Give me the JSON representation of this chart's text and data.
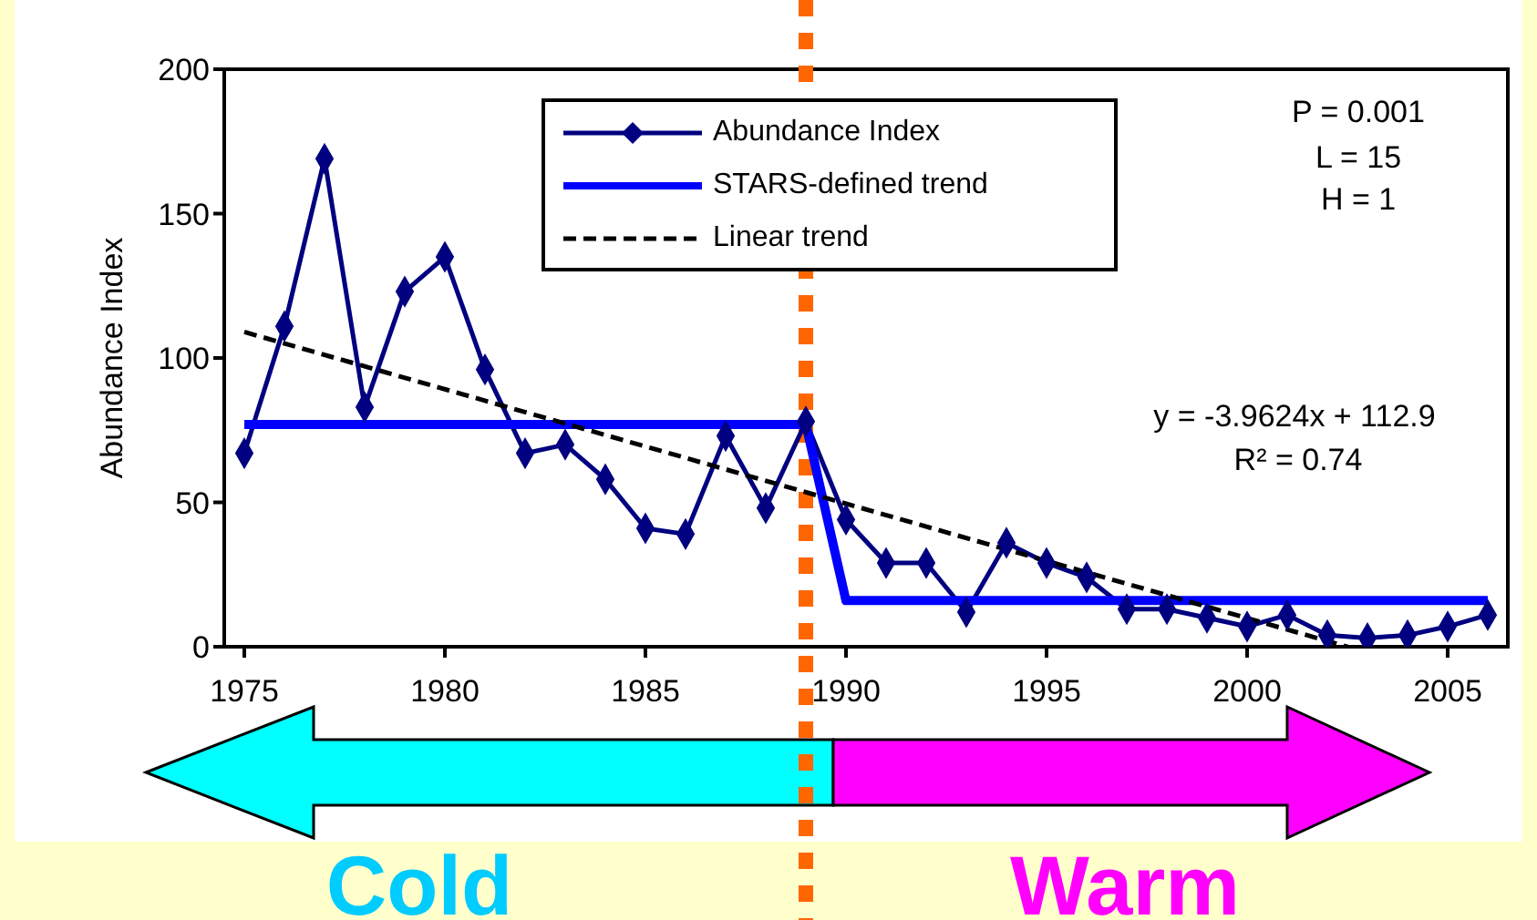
{
  "chart_data": {
    "type": "line",
    "ylabel": "Abundance Index",
    "xlim": [
      1974.5,
      2006.5
    ],
    "xticks": [
      1975,
      1980,
      1985,
      1990,
      1995,
      2000,
      2005
    ],
    "ylim": [
      0,
      200
    ],
    "yticks": [
      0,
      50,
      100,
      150,
      200
    ],
    "x": [
      1975,
      1976,
      1977,
      1978,
      1979,
      1980,
      1981,
      1982,
      1983,
      1984,
      1985,
      1986,
      1987,
      1988,
      1989,
      1990,
      1991,
      1992,
      1993,
      1994,
      1995,
      1996,
      1997,
      1998,
      1999,
      2000,
      2001,
      2002,
      2003,
      2004,
      2005,
      2006
    ],
    "series": [
      {
        "name": "Abundance Index",
        "color": "#000080",
        "marker": "diamond",
        "line_style": "solid",
        "values": [
          67,
          111,
          169,
          83,
          123,
          135,
          96,
          67,
          70,
          58,
          41,
          39,
          73,
          48,
          78,
          44,
          29,
          29,
          12,
          36,
          29,
          24,
          13,
          13,
          10,
          7,
          11,
          4,
          3,
          4,
          7,
          11
        ]
      },
      {
        "name": "STARS-defined trend",
        "color": "#0000ff",
        "marker": "none",
        "line_style": "solid",
        "x": [
          1975,
          1989,
          1990,
          2006
        ],
        "values": [
          77,
          77,
          16,
          16
        ]
      },
      {
        "name": "Linear trend",
        "color": "#000000",
        "marker": "none",
        "line_style": "dashed",
        "x": [
          1975,
          2002.5
        ],
        "values": [
          109,
          0
        ]
      }
    ],
    "ref_lines": [
      {
        "axis": "x",
        "value": 1989,
        "color": "#ff6600",
        "line_style": "dotted"
      }
    ],
    "annotations": [
      "P = 0.001",
      "L = 15",
      "H = 1",
      "y = -3.9624x + 112.9",
      "R² = 0.74",
      "Cold",
      "Warm"
    ],
    "legend": "top",
    "grid": false
  }
}
